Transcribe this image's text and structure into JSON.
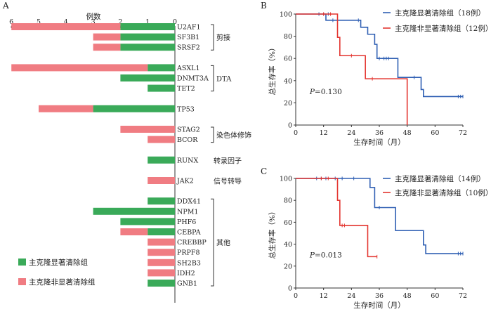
{
  "colors": {
    "green": "#3aaa59",
    "pink": "#f07c82",
    "blue": "#2f5fb3",
    "red": "#e3342f",
    "axis": "#333333"
  },
  "panelA": {
    "label": "A",
    "axis_title": "例数",
    "ticks": [
      "6",
      "5",
      "4",
      "3",
      "2",
      "1",
      "0"
    ],
    "legend": [
      {
        "key": "green",
        "label": "主克隆显著清除组"
      },
      {
        "key": "pink",
        "label": "主克隆非显著清除组"
      }
    ],
    "groups": [
      {
        "label": "剪接",
        "from": 0,
        "to": 2
      },
      {
        "label": "DTA",
        "from": 3,
        "to": 5
      },
      {
        "label": "染色体修饰",
        "from": 7,
        "to": 8
      },
      {
        "label": "转录因子",
        "from": 9,
        "to": 9
      },
      {
        "label": "信号转导",
        "from": 10,
        "to": 10
      },
      {
        "label": "其他",
        "from": 11,
        "to": 19
      }
    ]
  },
  "chart_data": [
    {
      "type": "bar",
      "orientation": "horizontal",
      "title": "",
      "xlabel": "例数",
      "xlim": [
        0,
        6
      ],
      "categories": [
        "U2AF1",
        "SF3B1",
        "SRSF2",
        "ASXL1",
        "DNMT3A",
        "TET2",
        "TP53",
        "STAG2",
        "BCOR",
        "RUNX",
        "JAK2",
        "DDX41",
        "NPM1",
        "PHF6",
        "CEBPA",
        "CREBBP",
        "PRPF8",
        "SH2B3",
        "IDH2",
        "GNB1"
      ],
      "rows": [
        0,
        1,
        2,
        4,
        5,
        6,
        8,
        10,
        11,
        13,
        15,
        17,
        18,
        19,
        20,
        21,
        22,
        23,
        24,
        25
      ],
      "series": [
        {
          "name": "主克隆显著清除组",
          "color_key": "green",
          "values": [
            2,
            2,
            2,
            1,
            2,
            1,
            3,
            0,
            0,
            1,
            0,
            1,
            3,
            2,
            1,
            0,
            0,
            0,
            0,
            1
          ]
        },
        {
          "name": "主克隆非显著清除组",
          "color_key": "pink",
          "values": [
            4,
            1,
            1,
            5,
            0,
            0,
            2,
            2,
            1,
            0,
            1,
            0,
            0,
            0,
            1,
            1,
            1,
            1,
            1,
            0
          ]
        }
      ]
    },
    {
      "type": "line",
      "panel": "B",
      "title": "",
      "xlabel": "生存时间（月）",
      "ylabel": "总生存率（%）",
      "xlim": [
        0,
        72
      ],
      "ylim": [
        0,
        100
      ],
      "xticks": [
        0,
        12,
        24,
        36,
        48,
        60,
        72
      ],
      "yticks": [
        0,
        20,
        40,
        60,
        80,
        100
      ],
      "annotation": {
        "italic": "P",
        "rest": "=0.130"
      },
      "series": [
        {
          "name": "主克隆显著清除组（18例）",
          "color_key": "blue",
          "x": [
            0,
            13,
            24,
            28,
            31,
            34,
            35,
            43,
            44,
            45,
            50,
            54,
            55,
            72
          ],
          "y": [
            100,
            94.4,
            94.4,
            88.1,
            81.8,
            72.7,
            60,
            60,
            42.9,
            42.9,
            42.9,
            32,
            25.7,
            25.7
          ],
          "censor_x": [
            10,
            12,
            14,
            16,
            18,
            27,
            36,
            38,
            39,
            40,
            51,
            70,
            71,
            72
          ],
          "censor_y": [
            100,
            100,
            100,
            94.4,
            94.4,
            94.4,
            60,
            60,
            60,
            60,
            42.9,
            25.7,
            25.7,
            25.7
          ]
        },
        {
          "name": "主克隆非显著清除组（12例）",
          "color_key": "red",
          "x": [
            0,
            18,
            19,
            30,
            47,
            48
          ],
          "y": [
            100,
            79,
            62.5,
            41.7,
            41.7,
            0
          ],
          "censor_x": [
            12,
            15,
            24,
            33
          ],
          "censor_y": [
            100,
            100,
            62.5,
            41.7
          ]
        }
      ]
    },
    {
      "type": "line",
      "panel": "C",
      "title": "",
      "xlabel": "生存时间（月）",
      "ylabel": "总生存率（%）",
      "xlim": [
        0,
        72
      ],
      "ylim": [
        0,
        100
      ],
      "xticks": [
        0,
        12,
        24,
        36,
        48,
        60,
        72
      ],
      "yticks": [
        0,
        20,
        40,
        60,
        80,
        100
      ],
      "annotation": {
        "italic": "P",
        "rest": "=0.013"
      },
      "series": [
        {
          "name": "主克隆显著清除组（14例）",
          "color_key": "blue",
          "x": [
            0,
            32,
            34,
            42,
            43,
            55,
            56,
            72
          ],
          "y": [
            100,
            91.7,
            73.4,
            73.4,
            52.4,
            39.3,
            31.4,
            31.4
          ],
          "censor_x": [
            9,
            11,
            13,
            17,
            20,
            25,
            36,
            70,
            71,
            72
          ],
          "censor_y": [
            100,
            100,
            100,
            100,
            100,
            100,
            73.4,
            31.4,
            31.4,
            31.4
          ]
        },
        {
          "name": "主克隆非显著清除组（10例）",
          "color_key": "red",
          "x": [
            0,
            18,
            19,
            31,
            35
          ],
          "y": [
            100,
            80,
            57.1,
            28.6,
            28.6
          ],
          "censor_x": [
            11,
            14,
            20,
            21,
            35
          ],
          "censor_y": [
            100,
            100,
            57.1,
            57.1,
            28.6
          ]
        }
      ]
    }
  ],
  "panelB": {
    "label": "B",
    "legend": [
      "主克隆显著清除组（18例）",
      "主克隆非显著清除组（12例）"
    ]
  },
  "panelC": {
    "label": "C",
    "legend": [
      "主克隆显著清除组（14例）",
      "主克隆非显著清除组（10例）"
    ]
  }
}
